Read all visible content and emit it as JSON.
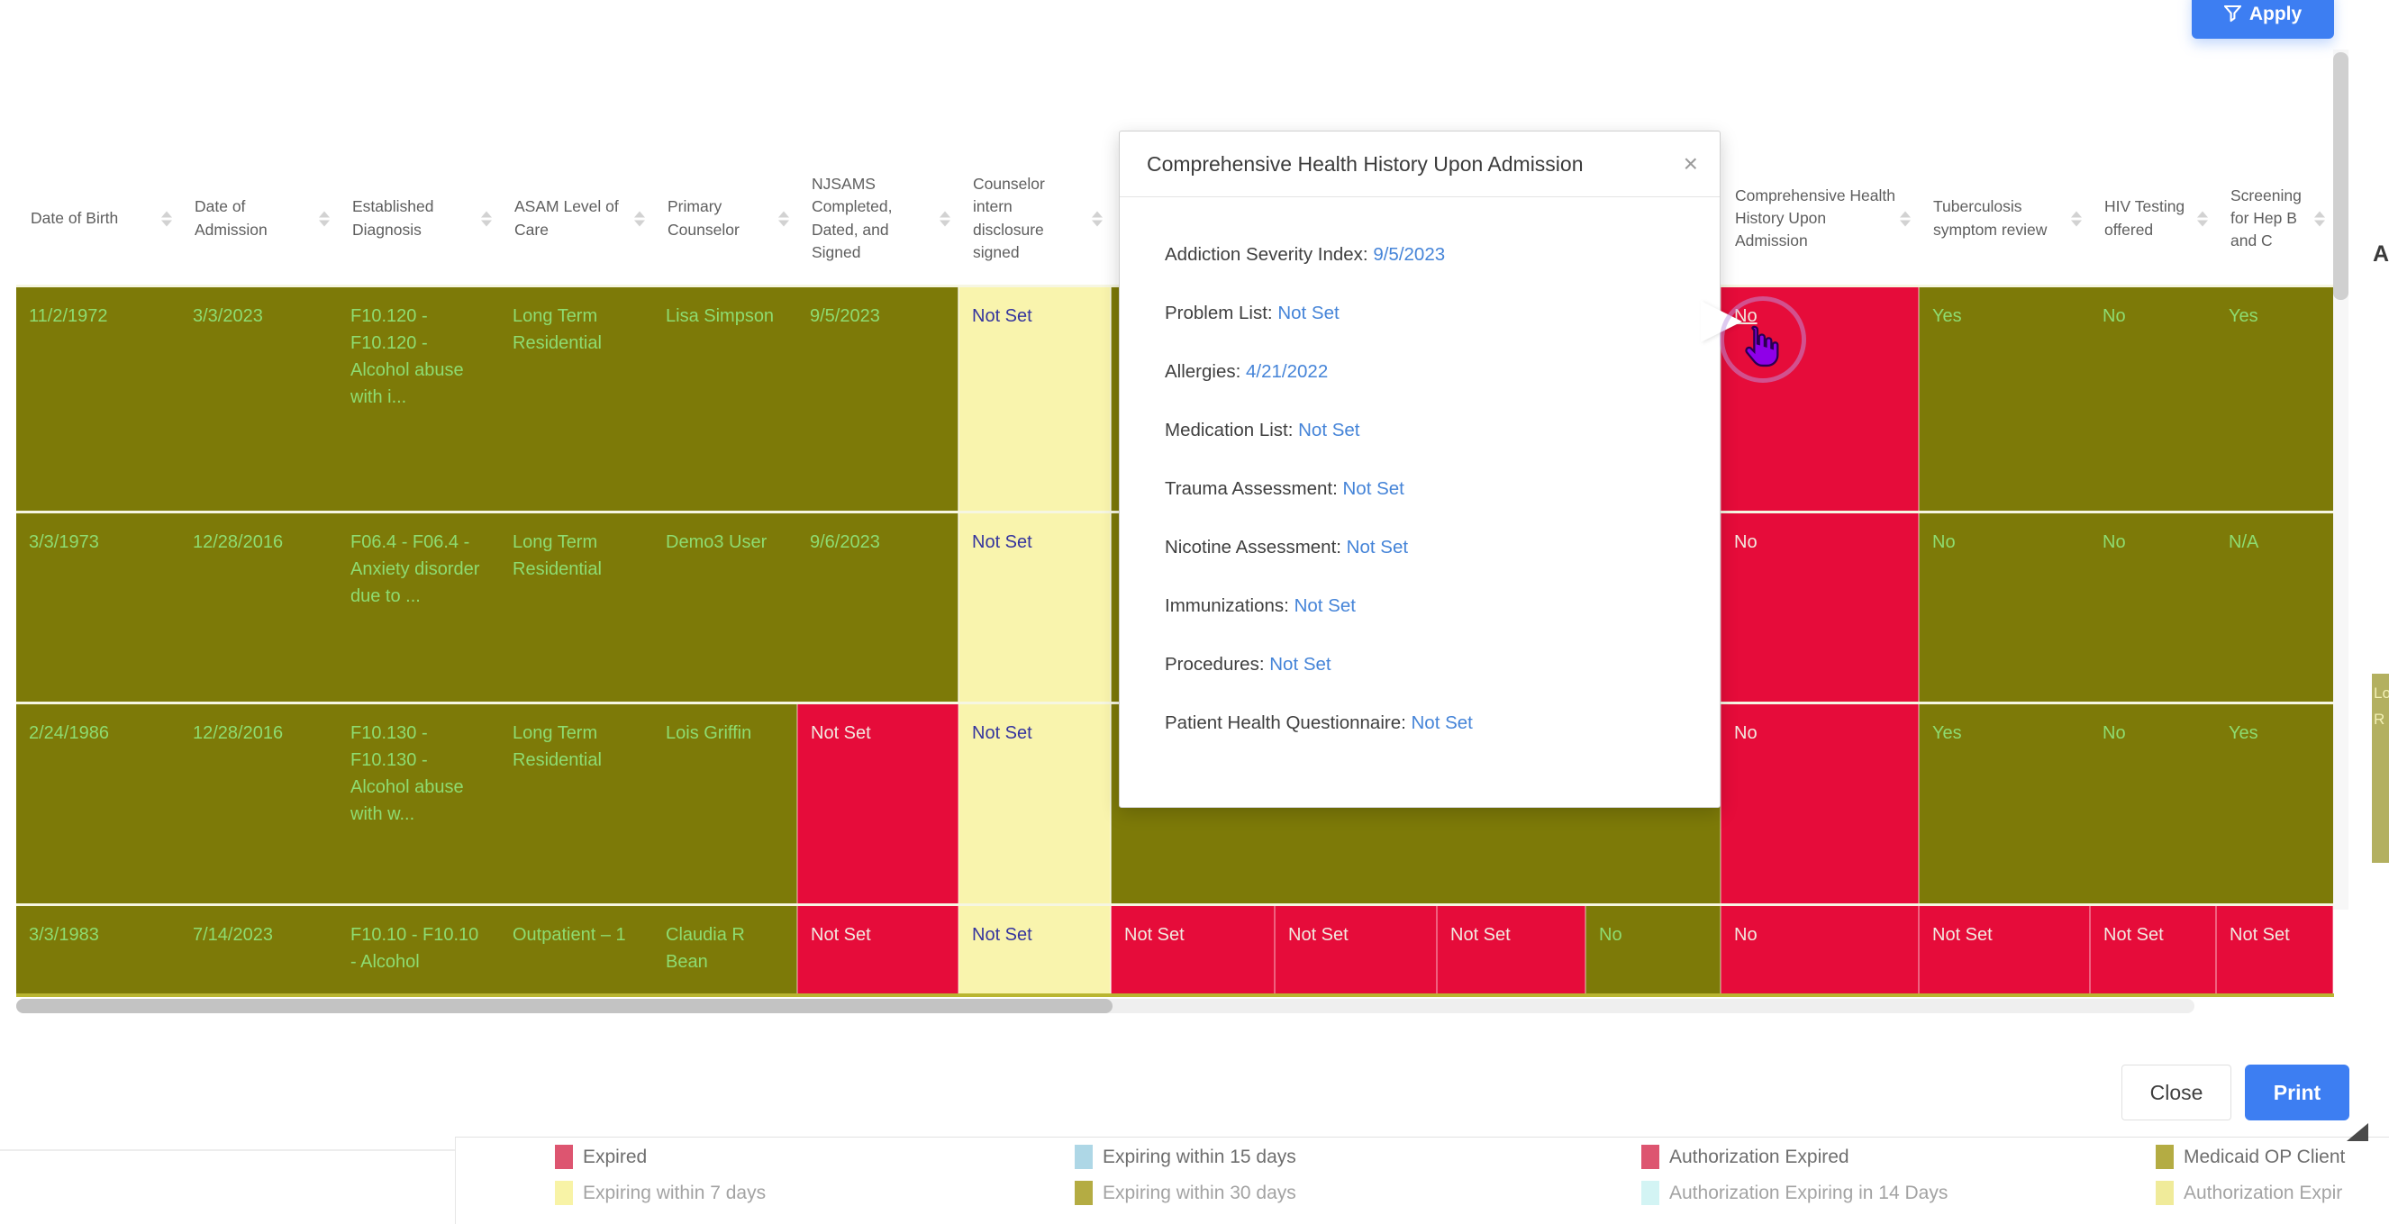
{
  "toolbar": {
    "apply_label": "Apply"
  },
  "table": {
    "headers": [
      "Date of Birth",
      "Date of Admission",
      "Established Diagnosis",
      "ASAM Level of Care",
      "Primary Counselor",
      "NJSAMS Completed, Dated, and Signed",
      "Counselor intern disclosure signed",
      "",
      "",
      "",
      "",
      "Comprehensive Health History Upon Admission",
      "Tuberculosis symptom review",
      "HIV Testing offered",
      "Screening for Hep B and C"
    ],
    "rows": [
      {
        "cells": [
          {
            "t": "11/2/1972",
            "c": "g"
          },
          {
            "t": "3/3/2023",
            "c": "g"
          },
          {
            "t": "F10.120 - F10.120 - Alcohol abuse with i...",
            "c": "g"
          },
          {
            "t": "Long Term Residential",
            "c": "g"
          },
          {
            "t": "Lisa Simpson",
            "c": "g"
          },
          {
            "t": "9/5/2023",
            "c": "g"
          },
          {
            "t": "Not Set",
            "c": "y"
          },
          {
            "t": "",
            "c": "g"
          },
          {
            "t": "",
            "c": "g"
          },
          {
            "t": "",
            "c": "g"
          },
          {
            "t": "",
            "c": "g"
          },
          {
            "t": "No",
            "c": "r",
            "u": true
          },
          {
            "t": "Yes",
            "c": "g"
          },
          {
            "t": "No",
            "c": "g"
          },
          {
            "t": "Yes",
            "c": "g"
          }
        ]
      },
      {
        "cells": [
          {
            "t": "3/3/1973",
            "c": "g"
          },
          {
            "t": "12/28/2016",
            "c": "g"
          },
          {
            "t": "F06.4 - F06.4 - Anxiety disorder due to ...",
            "c": "g"
          },
          {
            "t": "Long Term Residential",
            "c": "g"
          },
          {
            "t": "Demo3 User",
            "c": "g"
          },
          {
            "t": "9/6/2023",
            "c": "g"
          },
          {
            "t": "Not Set",
            "c": "y"
          },
          {
            "t": "",
            "c": "g"
          },
          {
            "t": "",
            "c": "g"
          },
          {
            "t": "",
            "c": "g"
          },
          {
            "t": "",
            "c": "g"
          },
          {
            "t": "No",
            "c": "r"
          },
          {
            "t": "No",
            "c": "g"
          },
          {
            "t": "No",
            "c": "g"
          },
          {
            "t": "N/A",
            "c": "g"
          }
        ]
      },
      {
        "cells": [
          {
            "t": "2/24/1986",
            "c": "g"
          },
          {
            "t": "12/28/2016",
            "c": "g"
          },
          {
            "t": "F10.130 - F10.130 - Alcohol abuse with w...",
            "c": "g"
          },
          {
            "t": "Long Term Residential",
            "c": "g"
          },
          {
            "t": "Lois Griffin",
            "c": "g"
          },
          {
            "t": "Not Set",
            "c": "r"
          },
          {
            "t": "Not Set",
            "c": "y"
          },
          {
            "t": "",
            "c": "g"
          },
          {
            "t": "",
            "c": "g"
          },
          {
            "t": "",
            "c": "g"
          },
          {
            "t": "",
            "c": "g"
          },
          {
            "t": "No",
            "c": "r"
          },
          {
            "t": "Yes",
            "c": "g"
          },
          {
            "t": "No",
            "c": "g"
          },
          {
            "t": "Yes",
            "c": "g"
          }
        ]
      },
      {
        "cells": [
          {
            "t": "3/3/1983",
            "c": "g"
          },
          {
            "t": "7/14/2023",
            "c": "g"
          },
          {
            "t": "F10.10 - F10.10 - Alcohol",
            "c": "g"
          },
          {
            "t": "Outpatient – 1",
            "c": "g"
          },
          {
            "t": "Claudia R Bean",
            "c": "g"
          },
          {
            "t": "Not Set",
            "c": "r"
          },
          {
            "t": "Not Set",
            "c": "y"
          },
          {
            "t": "Not Set",
            "c": "r"
          },
          {
            "t": "Not Set",
            "c": "r"
          },
          {
            "t": "Not Set",
            "c": "r"
          },
          {
            "t": "No",
            "c": "g"
          },
          {
            "t": "No",
            "c": "r"
          },
          {
            "t": "Not Set",
            "c": "r"
          },
          {
            "t": "Not Set",
            "c": "r"
          },
          {
            "t": "Not Set",
            "c": "r"
          }
        ]
      }
    ]
  },
  "popup": {
    "title": "Comprehensive Health History Upon Admission",
    "close_icon": "×",
    "items": [
      {
        "label": "Addiction Severity Index:",
        "value": "9/5/2023"
      },
      {
        "label": "Problem List:",
        "value": "Not Set"
      },
      {
        "label": "Allergies:",
        "value": "4/21/2022"
      },
      {
        "label": "Medication List:",
        "value": "Not Set"
      },
      {
        "label": "Trauma Assessment:",
        "value": "Not Set"
      },
      {
        "label": "Nicotine Assessment:",
        "value": "Not Set"
      },
      {
        "label": "Immunizations:",
        "value": "Not Set"
      },
      {
        "label": "Procedures:",
        "value": "Not Set"
      },
      {
        "label": "Patient Health Questionnaire:",
        "value": "Not Set"
      }
    ]
  },
  "footer_buttons": {
    "close": "Close",
    "print": "Print"
  },
  "legend": {
    "items": [
      {
        "label": "Expired",
        "color": "#dd5570"
      },
      {
        "label": "Expiring within 7 days",
        "color": "#f8f3a6"
      },
      {
        "label": "Expiring within 15 days",
        "color": "#aed7e6"
      },
      {
        "label": "Expiring within 30 days",
        "color": "#b4ac43"
      },
      {
        "label": "Authorization Expired",
        "color": "#dd5570"
      },
      {
        "label": "Authorization Expiring in 14 Days",
        "color": "#d3f4f4"
      },
      {
        "label": "Medicaid OP Client",
        "color": "#b4ac43"
      },
      {
        "label": "Authorization Expir",
        "color": "#f0eb9a"
      }
    ]
  },
  "edge_artifacts": {
    "clipped_header_text": "A",
    "clipped_cell_line1": "Lo",
    "clipped_cell_line2": "R"
  },
  "colors": {
    "cell_ok_bg": "#7d7a08",
    "cell_ok_text": "#8edc70",
    "cell_expired_bg": "#e60c3a",
    "cell_expired_text": "#f2e9e0",
    "cell_warn_bg": "#f9f4ad",
    "cell_warn_text": "#34349e",
    "link_blue": "#4584d8",
    "button_blue": "#3d7ef2"
  }
}
